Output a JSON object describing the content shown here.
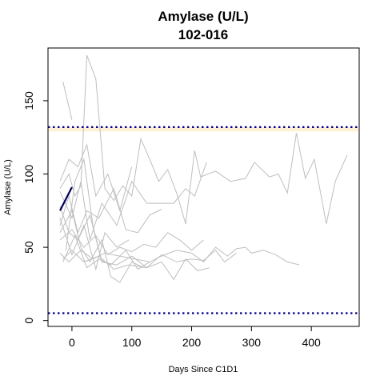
{
  "chart_data": {
    "type": "line",
    "title": "Amylase (U/L)",
    "subtitle": "102-016",
    "xlabel": "Days Since C1D1",
    "ylabel": "Amylase (U/L)",
    "xlim": [
      -40,
      480
    ],
    "ylim": [
      -4,
      186
    ],
    "x_ticks": [
      0,
      100,
      200,
      300,
      400
    ],
    "y_ticks": [
      0,
      50,
      100,
      150
    ],
    "grid": false,
    "legend": "none",
    "reference_lines": [
      {
        "y": 132,
        "style": "dotted",
        "color": "#00008b"
      },
      {
        "y": 5,
        "style": "dotted",
        "color": "#00008b"
      }
    ],
    "colors": {
      "highlight": "#00005a",
      "background_series": "#bebebe",
      "reference": "#00008b",
      "band": "#fff0d8"
    },
    "highlight_series": {
      "x": [
        -20,
        0
      ],
      "y": [
        75,
        91
      ]
    },
    "background_series": [
      {
        "x": [
          -15,
          0
        ],
        "y": [
          163,
          137
        ]
      },
      {
        "x": [
          -20,
          -5,
          5,
          15,
          25,
          40,
          55,
          70,
          85,
          100,
          115,
          130,
          145,
          160,
          175,
          190,
          205,
          215,
          240,
          265,
          290,
          305,
          330,
          345,
          360,
          375,
          390,
          405,
          425,
          440,
          460
        ],
        "y": [
          90,
          100,
          85,
          92,
          181,
          165,
          90,
          82,
          92,
          85,
          124,
          110,
          95,
          103,
          87,
          66,
          116,
          98,
          102,
          95,
          97,
          108,
          98,
          100,
          87,
          128,
          97,
          110,
          66,
          95,
          113
        ]
      },
      {
        "x": [
          -20,
          -5,
          10,
          25,
          40,
          60,
          80,
          100
        ],
        "y": [
          95,
          110,
          105,
          120,
          85,
          100,
          75,
          105
        ]
      },
      {
        "x": [
          -20,
          0,
          15,
          30,
          50,
          75,
          100,
          125,
          150,
          170,
          190,
          205,
          225
        ],
        "y": [
          88,
          70,
          95,
          55,
          80,
          65,
          95,
          80,
          80,
          80,
          90,
          85,
          108
        ]
      },
      {
        "x": [
          -20,
          -5,
          10,
          25,
          45,
          70,
          90,
          110,
          130,
          150
        ],
        "y": [
          65,
          85,
          60,
          75,
          70,
          90,
          62,
          60,
          72,
          76
        ]
      },
      {
        "x": [
          -20,
          0,
          20,
          40,
          60,
          80,
          100,
          120,
          140,
          160,
          180,
          200,
          220
        ],
        "y": [
          55,
          62,
          50,
          58,
          45,
          50,
          47,
          52,
          50,
          60,
          55,
          48,
          55
        ]
      },
      {
        "x": [
          -20,
          -5,
          15,
          35,
          55,
          80,
          105,
          130,
          150,
          175,
          200,
          220,
          240,
          260,
          275,
          290,
          300,
          320,
          340,
          360,
          380
        ],
        "y": [
          46,
          40,
          48,
          42,
          46,
          44,
          42,
          40,
          44,
          48,
          46,
          40,
          50,
          44,
          49,
          50,
          46,
          48,
          45,
          40,
          38
        ]
      },
      {
        "x": [
          -15,
          0,
          20,
          45,
          70,
          95,
          125,
          150,
          175,
          200,
          220,
          240,
          255,
          275
        ],
        "y": [
          42,
          48,
          40,
          44,
          35,
          38,
          36,
          45,
          40,
          42,
          41,
          48,
          40,
          46
        ]
      },
      {
        "x": [
          -20,
          -5,
          10,
          30,
          50,
          75,
          100,
          125,
          150,
          170,
          190,
          210,
          230
        ],
        "y": [
          78,
          60,
          55,
          72,
          40,
          38,
          44,
          36,
          40,
          28,
          42,
          34,
          36
        ]
      },
      {
        "x": [
          -20,
          0,
          15,
          30,
          50,
          65,
          80,
          100,
          120
        ],
        "y": [
          60,
          75,
          50,
          40,
          55,
          30,
          26,
          40,
          36
        ]
      },
      {
        "x": [
          -15,
          5,
          25,
          45,
          65,
          90,
          110,
          130
        ],
        "y": [
          40,
          58,
          36,
          42,
          38,
          48,
          35,
          40
        ]
      },
      {
        "x": [
          -20,
          0,
          20,
          40,
          55,
          75,
          95
        ],
        "y": [
          70,
          45,
          65,
          35,
          60,
          50,
          55
        ]
      },
      {
        "x": [
          -10,
          5,
          20,
          35,
          50
        ],
        "y": [
          48,
          95,
          110,
          65,
          40
        ]
      }
    ]
  }
}
